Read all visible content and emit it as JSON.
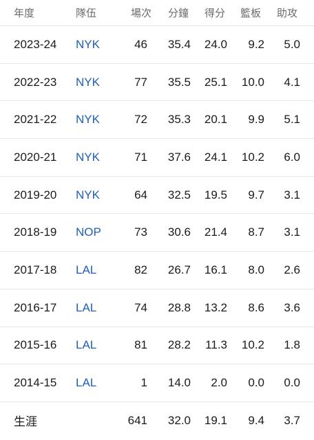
{
  "headers": {
    "season": "年度",
    "team": "隊伍",
    "gp": "場次",
    "min": "分鐘",
    "pts": "得分",
    "reb": "籃板",
    "ast": "助攻"
  },
  "rows": [
    {
      "season": "2023-24",
      "team": "NYK",
      "gp": "46",
      "min": "35.4",
      "pts": "24.0",
      "reb": "9.2",
      "ast": "5.0"
    },
    {
      "season": "2022-23",
      "team": "NYK",
      "gp": "77",
      "min": "35.5",
      "pts": "25.1",
      "reb": "10.0",
      "ast": "4.1"
    },
    {
      "season": "2021-22",
      "team": "NYK",
      "gp": "72",
      "min": "35.3",
      "pts": "20.1",
      "reb": "9.9",
      "ast": "5.1"
    },
    {
      "season": "2020-21",
      "team": "NYK",
      "gp": "71",
      "min": "37.6",
      "pts": "24.1",
      "reb": "10.2",
      "ast": "6.0"
    },
    {
      "season": "2019-20",
      "team": "NYK",
      "gp": "64",
      "min": "32.5",
      "pts": "19.5",
      "reb": "9.7",
      "ast": "3.1"
    },
    {
      "season": "2018-19",
      "team": "NOP",
      "gp": "73",
      "min": "30.6",
      "pts": "21.4",
      "reb": "8.7",
      "ast": "3.1"
    },
    {
      "season": "2017-18",
      "team": "LAL",
      "gp": "82",
      "min": "26.7",
      "pts": "16.1",
      "reb": "8.0",
      "ast": "2.6"
    },
    {
      "season": "2016-17",
      "team": "LAL",
      "gp": "74",
      "min": "28.8",
      "pts": "13.2",
      "reb": "8.6",
      "ast": "3.6"
    },
    {
      "season": "2015-16",
      "team": "LAL",
      "gp": "81",
      "min": "28.2",
      "pts": "11.3",
      "reb": "10.2",
      "ast": "1.8"
    },
    {
      "season": "2014-15",
      "team": "LAL",
      "gp": "1",
      "min": "14.0",
      "pts": "2.0",
      "reb": "0.0",
      "ast": "0.0"
    }
  ],
  "career": {
    "label": "生涯",
    "gp": "641",
    "min": "32.0",
    "pts": "19.1",
    "reb": "9.4",
    "ast": "3.7"
  },
  "colors": {
    "team_link": "#1f5fb7",
    "header_text": "#6b6b6b"
  }
}
